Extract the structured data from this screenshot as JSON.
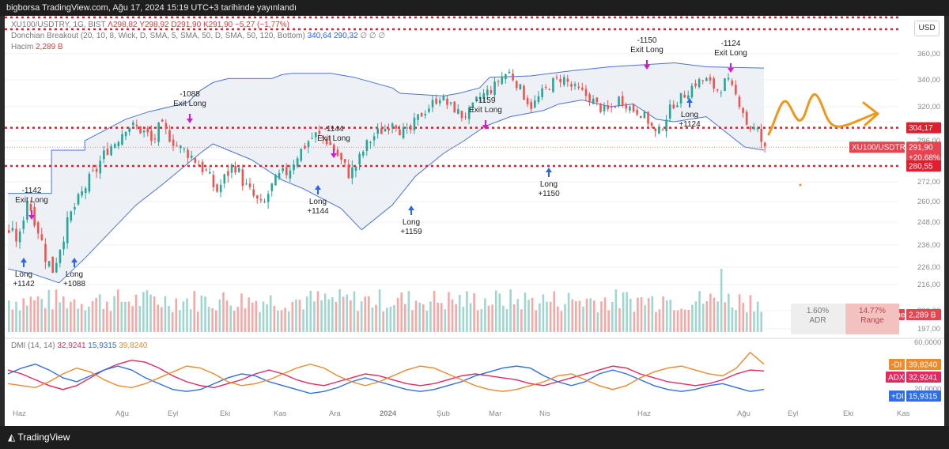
{
  "header": {
    "text": "bigborsa TradingView.com, Ağu 17, 2024 15:19 UTC+3 tarihinde yayınlandı"
  },
  "legend": {
    "symbol": "XU100/USDTRY, 1G, BIST",
    "ohlc": "Λ298,82 Y298,92 D291,90 K291,90 −5,27 (−1,77%)",
    "donchian_label": "Donchian Breakout (20, 10, 8, Wick, D, SMA, 5, SMA, 50, D, SMA, 50, 120, Bottom)",
    "donchian_v1": "340,64",
    "donchian_v2": "290,32",
    "donchian_extra": "∅ ∅ ∅",
    "volume_label": "Hacim",
    "volume_value": "2,289 B",
    "dmi_label": "DMI (14, 14)",
    "dmi_adx": "32,9241",
    "dmi_pdi": "15,9315",
    "dmi_mdi": "39,8240"
  },
  "currency_button": "USD",
  "badges": {
    "resistance": "304,17",
    "price": "291,90",
    "symbol_tag": "XU100/USDTRY",
    "change": "+20,68%",
    "support": "280,55",
    "volume_tag": "Volume",
    "volume_val": "2,289 B",
    "mdi_tag": "-DI",
    "mdi_val": "39,8240",
    "adx_tag": "ADX",
    "adx_val": "32,9241",
    "pdi_tag": "+DI",
    "pdi_val": "15,9315"
  },
  "stats": {
    "adr": "1.60%",
    "adr_label": "ADR",
    "range": "14.77%",
    "range_label": "Range"
  },
  "footer": {
    "brand": "TradingView"
  },
  "colors": {
    "up": "#26a69a",
    "down": "#ef5350",
    "band": "#4a74d8",
    "level": "#e01e2d",
    "adx": "#e5285e",
    "pdi": "#2f6ee8",
    "mdi": "#f0892b",
    "arrow": "#f0961a",
    "signal_long": "#2962ff",
    "signal_exit": "#d11ad1"
  },
  "chart_data": {
    "type": "candlestick",
    "y_ticks": [
      197,
      206,
      216,
      226,
      236,
      248,
      260,
      272,
      284,
      296,
      308,
      320,
      340,
      360
    ],
    "y_tick_labels": [
      "197,00",
      "206,00",
      "216,00",
      "226,00",
      "236,00",
      "248,00",
      "260,00",
      "272,00",
      "284,00",
      "296,00",
      "308,00",
      "320,00",
      "340,00",
      "360,00"
    ],
    "dmi_ticks": [
      "60,0000",
      "20,0000"
    ],
    "x_labels": [
      "Haz",
      "Ağu",
      "Eyl",
      "Eki",
      "Kas",
      "Ara",
      "2024",
      "Şub",
      "Mar",
      "Nis",
      "Haz",
      "Ağu",
      "Eyl",
      "Eki",
      "Kas"
    ],
    "close_path": [
      [
        0,
        243
      ],
      [
        8,
        238
      ],
      [
        14,
        262
      ],
      [
        22,
        246
      ],
      [
        28,
        232
      ],
      [
        34,
        224
      ],
      [
        42,
        240
      ],
      [
        48,
        252
      ],
      [
        55,
        262
      ],
      [
        62,
        272
      ],
      [
        68,
        278
      ],
      [
        76,
        290
      ],
      [
        84,
        296
      ],
      [
        92,
        306
      ],
      [
        100,
        304
      ],
      [
        108,
        300
      ],
      [
        112,
        294
      ],
      [
        118,
        306
      ],
      [
        126,
        298
      ],
      [
        132,
        292
      ],
      [
        140,
        288
      ],
      [
        148,
        282
      ],
      [
        155,
        276
      ],
      [
        162,
        266
      ],
      [
        170,
        276
      ],
      [
        176,
        282
      ],
      [
        184,
        270
      ],
      [
        192,
        262
      ],
      [
        198,
        256
      ],
      [
        204,
        268
      ],
      [
        210,
        274
      ],
      [
        218,
        278
      ],
      [
        226,
        288
      ],
      [
        234,
        296
      ],
      [
        240,
        300
      ],
      [
        248,
        296
      ],
      [
        254,
        290
      ],
      [
        260,
        282
      ],
      [
        266,
        276
      ],
      [
        272,
        282
      ],
      [
        278,
        292
      ],
      [
        286,
        300
      ],
      [
        294,
        304
      ],
      [
        300,
        310
      ],
      [
        306,
        302
      ],
      [
        312,
        300
      ],
      [
        318,
        310
      ],
      [
        324,
        316
      ],
      [
        330,
        322
      ],
      [
        336,
        328
      ],
      [
        342,
        322
      ],
      [
        348,
        318
      ],
      [
        354,
        312
      ],
      [
        360,
        316
      ],
      [
        366,
        326
      ],
      [
        372,
        330
      ],
      [
        378,
        334
      ],
      [
        384,
        342
      ],
      [
        390,
        346
      ],
      [
        396,
        338
      ],
      [
        402,
        328
      ],
      [
        408,
        320
      ],
      [
        416,
        330
      ],
      [
        424,
        338
      ],
      [
        432,
        342
      ],
      [
        440,
        334
      ],
      [
        448,
        330
      ],
      [
        454,
        326
      ],
      [
        460,
        320
      ],
      [
        466,
        316
      ],
      [
        472,
        320
      ],
      [
        476,
        326
      ],
      [
        482,
        322
      ],
      [
        486,
        318
      ],
      [
        492,
        316
      ],
      [
        498,
        310
      ],
      [
        506,
        298
      ],
      [
        512,
        310
      ],
      [
        518,
        322
      ],
      [
        524,
        326
      ],
      [
        530,
        332
      ],
      [
        536,
        338
      ],
      [
        544,
        340
      ],
      [
        548,
        336
      ],
      [
        554,
        332
      ],
      [
        560,
        340
      ],
      [
        566,
        330
      ],
      [
        572,
        320
      ],
      [
        576,
        306
      ],
      [
        584,
        302
      ],
      [
        590,
        290
      ]
    ],
    "upper_band": [
      [
        0,
        265
      ],
      [
        34,
        265
      ],
      [
        34,
        290
      ],
      [
        60,
        290
      ],
      [
        60,
        296
      ],
      [
        92,
        310
      ],
      [
        110,
        316
      ],
      [
        140,
        323
      ],
      [
        150,
        332
      ],
      [
        160,
        338
      ],
      [
        172,
        341
      ],
      [
        206,
        341
      ],
      [
        214,
        344
      ],
      [
        222,
        345
      ],
      [
        236,
        345
      ],
      [
        252,
        345
      ],
      [
        270,
        342
      ],
      [
        300,
        334
      ],
      [
        306,
        330
      ],
      [
        340,
        328
      ],
      [
        352,
        330
      ],
      [
        368,
        334
      ],
      [
        376,
        342
      ],
      [
        408,
        343
      ],
      [
        440,
        347
      ],
      [
        470,
        350
      ],
      [
        520,
        353
      ],
      [
        545,
        350
      ],
      [
        590,
        349
      ]
    ],
    "lower_band": [
      [
        0,
        225
      ],
      [
        20,
        222
      ],
      [
        40,
        217
      ],
      [
        60,
        230
      ],
      [
        100,
        258
      ],
      [
        120,
        270
      ],
      [
        150,
        288
      ],
      [
        160,
        294
      ],
      [
        190,
        284
      ],
      [
        214,
        273
      ],
      [
        230,
        268
      ],
      [
        260,
        256
      ],
      [
        276,
        244
      ],
      [
        300,
        258
      ],
      [
        318,
        275
      ],
      [
        340,
        288
      ],
      [
        356,
        296
      ],
      [
        372,
        305
      ],
      [
        392,
        312
      ],
      [
        418,
        317
      ],
      [
        430,
        322
      ],
      [
        448,
        325
      ],
      [
        470,
        320
      ],
      [
        488,
        322
      ],
      [
        506,
        310
      ],
      [
        520,
        308
      ],
      [
        545,
        312
      ],
      [
        575,
        292
      ],
      [
        590,
        290
      ]
    ],
    "resistance": 304.17,
    "support": 280.55,
    "last_price": 291.9,
    "signals": [
      {
        "kind": "long",
        "text": "Long",
        "value": "+1142"
      },
      {
        "kind": "exit",
        "text": "Exit Long",
        "value": "-1142"
      },
      {
        "kind": "long",
        "text": "Long",
        "value": "+1088"
      },
      {
        "kind": "exit",
        "text": "Exit Long",
        "value": "-1088"
      },
      {
        "kind": "long",
        "text": "Long",
        "value": "+1144"
      },
      {
        "kind": "exit",
        "text": "Exit Long",
        "value": "-1144"
      },
      {
        "kind": "long",
        "text": "Long",
        "value": "+1159"
      },
      {
        "kind": "exit",
        "text": "Exit Long",
        "value": "-1159"
      },
      {
        "kind": "long",
        "text": "Long",
        "value": "+1150"
      },
      {
        "kind": "exit",
        "text": "Exit Long",
        "value": "-1150"
      },
      {
        "kind": "long",
        "text": "Long",
        "value": "+1124"
      },
      {
        "kind": "exit",
        "text": "Exit Long",
        "value": "-1124"
      }
    ],
    "dmi_series": [
      {
        "name": "ADX",
        "values": [
          34,
          30,
          24,
          18,
          14,
          18,
          26,
          34,
          40,
          44,
          42,
          36,
          28,
          22,
          18,
          16,
          20,
          24,
          30,
          34,
          30,
          24,
          20,
          18,
          22,
          26,
          30,
          28,
          24,
          20,
          18,
          20,
          24,
          28,
          30,
          28,
          26,
          24,
          20,
          18,
          22,
          26,
          30,
          34,
          38,
          36,
          30,
          26,
          22,
          20,
          18,
          20,
          24,
          30,
          34,
          33
        ]
      },
      {
        "name": "+DI",
        "values": [
          30,
          36,
          40,
          34,
          26,
          22,
          28,
          34,
          38,
          34,
          26,
          20,
          14,
          12,
          14,
          20,
          26,
          30,
          28,
          22,
          18,
          14,
          10,
          12,
          16,
          22,
          26,
          22,
          18,
          14,
          12,
          14,
          18,
          22,
          28,
          32,
          36,
          38,
          36,
          28,
          22,
          18,
          22,
          30,
          34,
          30,
          24,
          18,
          14,
          12,
          14,
          18,
          20,
          16,
          12,
          14
        ]
      },
      {
        "name": "-DI",
        "values": [
          20,
          18,
          16,
          22,
          30,
          36,
          32,
          24,
          18,
          16,
          20,
          26,
          32,
          38,
          36,
          30,
          22,
          18,
          20,
          24,
          30,
          36,
          40,
          36,
          28,
          22,
          18,
          22,
          28,
          34,
          38,
          36,
          30,
          24,
          18,
          14,
          12,
          14,
          18,
          22,
          28,
          30,
          24,
          18,
          14,
          18,
          26,
          32,
          36,
          38,
          34,
          30,
          28,
          36,
          52,
          40
        ]
      }
    ],
    "candle_count": 208
  }
}
